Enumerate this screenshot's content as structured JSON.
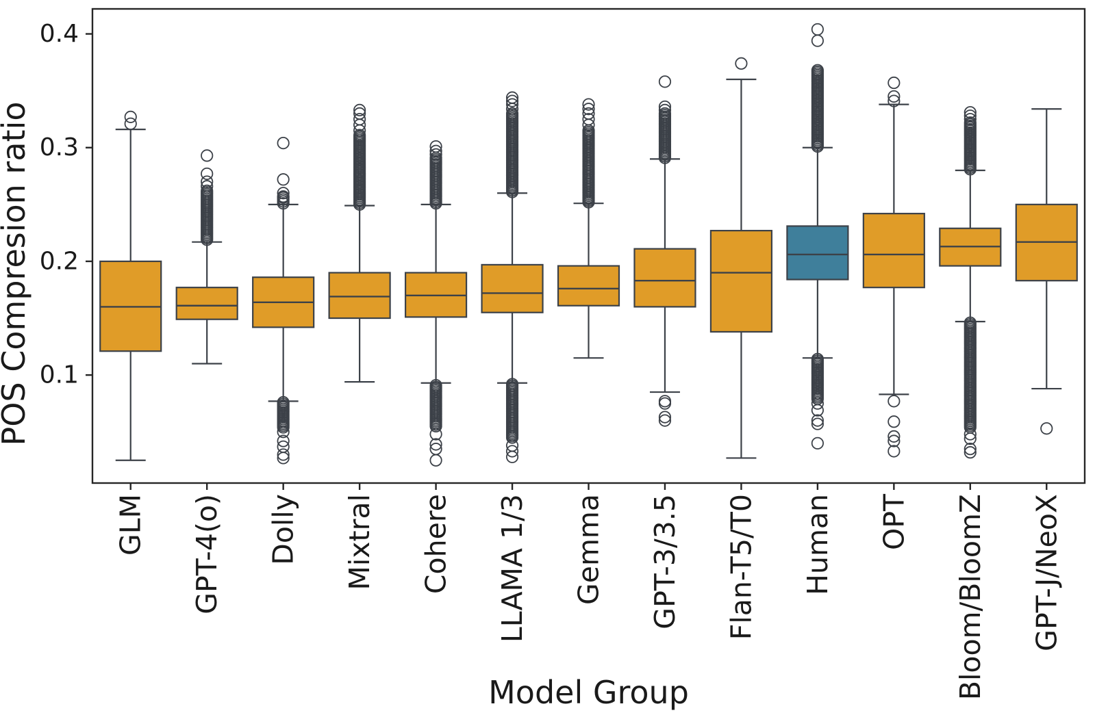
{
  "chart_data": {
    "type": "boxplot",
    "title": "",
    "xlabel": "Model Group",
    "ylabel": "POS Compresion ratio",
    "ylim": [
      0.005,
      0.422
    ],
    "yticks": [
      0.1,
      0.2,
      0.3,
      0.4
    ],
    "ytick_labels": [
      "0.1",
      "0.2",
      "0.3",
      "0.4"
    ],
    "grid": false,
    "legend": "none",
    "categories": [
      "GLM",
      "GPT-4(o)",
      "Dolly",
      "Mixtral",
      "Cohere",
      "LLAMA 1/3",
      "Gemma",
      "GPT-3/3.5",
      "Flan-T5/T0",
      "Human",
      "OPT",
      "Bloom/BloomZ",
      "GPT-J/NeoX"
    ],
    "highlighted_category": "Human",
    "colors": {
      "box_fill_orange": "#E09C28",
      "box_fill_blue": "#3F7F9B",
      "line_gray": "#3C4148",
      "spine_black": "#262626",
      "background": "#FFFFFF"
    },
    "groups": [
      {
        "label": "GLM",
        "color": "orange",
        "whisker_low": 0.025,
        "q1": 0.121,
        "median": 0.16,
        "q3": 0.2,
        "whisker_high": 0.316,
        "dense_high": null,
        "outliers_high": [
          0.321,
          0.327
        ],
        "dense_low": null,
        "outliers_low": []
      },
      {
        "label": "GPT-4(o)",
        "color": "orange",
        "whisker_low": 0.11,
        "q1": 0.149,
        "median": 0.161,
        "q3": 0.177,
        "whisker_high": 0.217,
        "dense_high": [
          0.219,
          0.262
        ],
        "outliers_high": [
          0.266,
          0.27,
          0.277,
          0.293
        ],
        "dense_low": null,
        "outliers_low": []
      },
      {
        "label": "Dolly",
        "color": "orange",
        "whisker_low": 0.077,
        "q1": 0.142,
        "median": 0.164,
        "q3": 0.186,
        "whisker_high": 0.25,
        "dense_high": [
          0.251,
          0.256
        ],
        "outliers_high": [
          0.257,
          0.26,
          0.272,
          0.304
        ],
        "dense_low": [
          0.054,
          0.076
        ],
        "outliers_low": [
          0.05,
          0.042,
          0.037,
          0.03,
          0.027
        ]
      },
      {
        "label": "Mixtral",
        "color": "orange",
        "whisker_low": 0.094,
        "q1": 0.15,
        "median": 0.169,
        "q3": 0.19,
        "whisker_high": 0.249,
        "dense_high": [
          0.25,
          0.311
        ],
        "outliers_high": [
          0.315,
          0.32,
          0.325,
          0.33,
          0.333
        ],
        "dense_low": null,
        "outliers_low": []
      },
      {
        "label": "Cohere",
        "color": "orange",
        "whisker_low": 0.093,
        "q1": 0.151,
        "median": 0.17,
        "q3": 0.19,
        "whisker_high": 0.25,
        "dense_high": [
          0.251,
          0.291
        ],
        "outliers_high": [
          0.294,
          0.297,
          0.301
        ],
        "dense_low": [
          0.055,
          0.091
        ],
        "outliers_low": [
          0.048,
          0.039,
          0.035,
          0.025
        ]
      },
      {
        "label": "LLAMA 1/3",
        "color": "orange",
        "whisker_low": 0.093,
        "q1": 0.155,
        "median": 0.172,
        "q3": 0.197,
        "whisker_high": 0.26,
        "dense_high": [
          0.261,
          0.33
        ],
        "outliers_high": [
          0.334,
          0.338,
          0.341,
          0.344
        ],
        "dense_low": [
          0.045,
          0.092
        ],
        "outliers_low": [
          0.038,
          0.033,
          0.028
        ]
      },
      {
        "label": "Gemma",
        "color": "orange",
        "whisker_low": 0.115,
        "q1": 0.161,
        "median": 0.176,
        "q3": 0.196,
        "whisker_high": 0.251,
        "dense_high": [
          0.252,
          0.315
        ],
        "outliers_high": [
          0.32,
          0.325,
          0.33,
          0.334,
          0.338
        ],
        "dense_low": null,
        "outliers_low": []
      },
      {
        "label": "GPT-3/3.5",
        "color": "orange",
        "whisker_low": 0.085,
        "q1": 0.16,
        "median": 0.183,
        "q3": 0.211,
        "whisker_high": 0.29,
        "dense_high": [
          0.291,
          0.33
        ],
        "outliers_high": [
          0.333,
          0.336,
          0.358
        ],
        "dense_low": null,
        "outliers_low": [
          0.077,
          0.075,
          0.063,
          0.06
        ]
      },
      {
        "label": "Flan-T5/T0",
        "color": "orange",
        "whisker_low": 0.027,
        "q1": 0.138,
        "median": 0.19,
        "q3": 0.227,
        "whisker_high": 0.36,
        "dense_high": null,
        "outliers_high": [
          0.374
        ],
        "dense_low": null,
        "outliers_low": []
      },
      {
        "label": "Human",
        "color": "blue",
        "whisker_low": 0.115,
        "q1": 0.184,
        "median": 0.206,
        "q3": 0.231,
        "whisker_high": 0.3,
        "dense_high": [
          0.301,
          0.368
        ],
        "outliers_high": [
          0.394,
          0.404
        ],
        "dense_low": [
          0.079,
          0.114
        ],
        "outliers_low": [
          0.075,
          0.069,
          0.06,
          0.057,
          0.04
        ]
      },
      {
        "label": "OPT",
        "color": "orange",
        "whisker_low": 0.083,
        "q1": 0.177,
        "median": 0.206,
        "q3": 0.242,
        "whisker_high": 0.338,
        "dense_high": null,
        "outliers_high": [
          0.341,
          0.345,
          0.357
        ],
        "dense_low": null,
        "outliers_low": [
          0.077,
          0.059,
          0.046,
          0.042,
          0.033
        ]
      },
      {
        "label": "Bloom/BloomZ",
        "color": "orange",
        "whisker_low": 0.147,
        "q1": 0.196,
        "median": 0.213,
        "q3": 0.229,
        "whisker_high": 0.28,
        "dense_high": [
          0.281,
          0.322
        ],
        "outliers_high": [
          0.325,
          0.328,
          0.331
        ],
        "dense_low": [
          0.054,
          0.146
        ],
        "outliers_low": [
          0.048,
          0.044,
          0.035,
          0.032
        ]
      },
      {
        "label": "GPT-J/NeoX",
        "color": "orange",
        "whisker_low": 0.088,
        "q1": 0.183,
        "median": 0.217,
        "q3": 0.25,
        "whisker_high": 0.334,
        "dense_high": null,
        "outliers_high": [],
        "dense_low": null,
        "outliers_low": [
          0.053
        ]
      }
    ]
  }
}
